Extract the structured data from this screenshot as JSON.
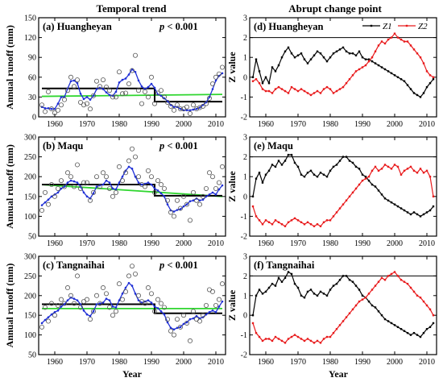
{
  "col_titles": {
    "left": "Temporal trend",
    "right": "Abrupt change point"
  },
  "labels": {
    "year": "Year",
    "annual_runoff": "Annual runoff (mm)",
    "z_value": "Z value",
    "pval_prefix": "p",
    "pval_suffix": "< 0.001"
  },
  "legend": {
    "z1": "Z1",
    "z2": "Z2"
  },
  "colors": {
    "z1": "#000000",
    "z2": "#e8191b",
    "moving": "#1f2fd6",
    "trend": "#2fd62f",
    "step": "#000000",
    "obs": "#555555"
  },
  "chart_data": [
    {
      "type": "scatter",
      "id": "trend_huangheyan",
      "panel": "(a) Huangheyan",
      "xlim": [
        1955,
        2013
      ],
      "ylim": [
        0,
        150
      ],
      "xticks": [
        1960,
        1970,
        1980,
        1990,
        2000,
        2010
      ],
      "yticks": [
        0,
        30,
        60,
        90,
        120,
        150
      ],
      "x": [
        1956,
        1957,
        1958,
        1959,
        1960,
        1961,
        1962,
        1963,
        1964,
        1965,
        1966,
        1967,
        1968,
        1969,
        1970,
        1971,
        1972,
        1973,
        1974,
        1975,
        1976,
        1977,
        1978,
        1979,
        1980,
        1981,
        1982,
        1983,
        1984,
        1985,
        1986,
        1987,
        1988,
        1989,
        1990,
        1991,
        1992,
        1993,
        1994,
        1995,
        1996,
        1997,
        1998,
        1999,
        2000,
        2001,
        2002,
        2003,
        2004,
        2005,
        2006,
        2007,
        2008,
        2009,
        2010,
        2011,
        2012
      ],
      "observed": [
        18,
        8,
        38,
        12,
        6,
        10,
        18,
        26,
        40,
        60,
        46,
        56,
        22,
        18,
        20,
        12,
        32,
        54,
        46,
        56,
        45,
        40,
        30,
        30,
        68,
        35,
        36,
        50,
        70,
        93,
        40,
        20,
        38,
        30,
        60,
        20,
        36,
        40,
        30,
        22,
        16,
        10,
        18,
        12,
        12,
        15,
        5,
        18,
        12,
        14,
        16,
        20,
        28,
        50,
        60,
        65,
        75
      ],
      "moving_avg": [
        15,
        13,
        13,
        12,
        12,
        20,
        30,
        30,
        43,
        54,
        55,
        51,
        35,
        27,
        30,
        26,
        32,
        42,
        44,
        42,
        37,
        33,
        32,
        38,
        52,
        56,
        58,
        64,
        72,
        68,
        55,
        46,
        42,
        45,
        50,
        44,
        34,
        32,
        28,
        24,
        18,
        15,
        15,
        12,
        10,
        10,
        10,
        11,
        12,
        14,
        18,
        22,
        30,
        42,
        55,
        62,
        66
      ],
      "step": [
        {
          "x0": 1956,
          "x1": 1991,
          "y": 43
        },
        {
          "x0": 1991,
          "x1": 2012,
          "y": 23
        }
      ],
      "trend": {
        "x0": 1956,
        "x1": 2012,
        "y0": 31,
        "y1": 34
      }
    },
    {
      "type": "scatter",
      "id": "trend_maqu",
      "panel": "(b) Maqu",
      "xlim": [
        1955,
        2013
      ],
      "ylim": [
        50,
        300
      ],
      "xticks": [
        1960,
        1970,
        1980,
        1990,
        2000,
        2010
      ],
      "yticks": [
        50,
        100,
        150,
        200,
        250,
        300
      ],
      "x": [
        1956,
        1957,
        1958,
        1959,
        1960,
        1961,
        1962,
        1963,
        1964,
        1965,
        1966,
        1967,
        1968,
        1969,
        1970,
        1971,
        1972,
        1973,
        1974,
        1975,
        1976,
        1977,
        1978,
        1979,
        1980,
        1981,
        1982,
        1983,
        1984,
        1985,
        1986,
        1987,
        1988,
        1989,
        1990,
        1991,
        1992,
        1993,
        1994,
        1995,
        1996,
        1997,
        1998,
        1999,
        2000,
        2001,
        2002,
        2003,
        2004,
        2005,
        2006,
        2007,
        2008,
        2009,
        2010,
        2011,
        2012
      ],
      "observed": [
        115,
        160,
        130,
        180,
        150,
        170,
        190,
        175,
        210,
        200,
        175,
        230,
        170,
        185,
        185,
        140,
        160,
        200,
        175,
        210,
        200,
        170,
        150,
        160,
        225,
        190,
        210,
        240,
        270,
        250,
        200,
        180,
        175,
        215,
        200,
        160,
        190,
        180,
        170,
        140,
        110,
        100,
        140,
        120,
        150,
        130,
        90,
        160,
        140,
        130,
        150,
        170,
        210,
        200,
        170,
        185,
        225
      ],
      "moving_avg": [
        128,
        135,
        142,
        150,
        155,
        160,
        170,
        175,
        185,
        190,
        188,
        185,
        175,
        160,
        150,
        145,
        158,
        175,
        178,
        180,
        190,
        185,
        170,
        168,
        185,
        200,
        215,
        225,
        220,
        200,
        185,
        180,
        182,
        185,
        180,
        170,
        165,
        158,
        150,
        130,
        115,
        112,
        116,
        118,
        125,
        130,
        138,
        140,
        145,
        140,
        142,
        150,
        155,
        160,
        155,
        168,
        178
      ],
      "step": [
        {
          "x0": 1956,
          "x1": 1991,
          "y": 180
        },
        {
          "x0": 1991,
          "x1": 2012,
          "y": 152
        }
      ],
      "trend": {
        "x0": 1956,
        "x1": 2012,
        "y0": 180,
        "y1": 150
      }
    },
    {
      "type": "scatter",
      "id": "trend_tangnaihai",
      "panel": "(c) Tangnaihai",
      "xlim": [
        1955,
        2013
      ],
      "ylim": [
        50,
        300
      ],
      "xticks": [
        1960,
        1970,
        1980,
        1990,
        2000,
        2010
      ],
      "yticks": [
        50,
        100,
        150,
        200,
        250,
        300
      ],
      "x": [
        1956,
        1957,
        1958,
        1959,
        1960,
        1961,
        1962,
        1963,
        1964,
        1965,
        1966,
        1967,
        1968,
        1969,
        1970,
        1971,
        1972,
        1973,
        1974,
        1975,
        1976,
        1977,
        1978,
        1979,
        1980,
        1981,
        1982,
        1983,
        1984,
        1985,
        1986,
        1987,
        1988,
        1989,
        1990,
        1991,
        1992,
        1993,
        1994,
        1995,
        1996,
        1997,
        1998,
        1999,
        2000,
        2001,
        2002,
        2003,
        2004,
        2005,
        2006,
        2007,
        2008,
        2009,
        2010,
        2011,
        2012
      ],
      "observed": [
        120,
        170,
        135,
        180,
        150,
        175,
        190,
        180,
        220,
        200,
        180,
        250,
        170,
        185,
        190,
        140,
        160,
        200,
        180,
        220,
        205,
        170,
        150,
        160,
        230,
        190,
        210,
        250,
        275,
        255,
        200,
        185,
        180,
        220,
        205,
        160,
        190,
        180,
        170,
        140,
        110,
        100,
        140,
        120,
        150,
        130,
        85,
        160,
        140,
        135,
        150,
        175,
        215,
        210,
        175,
        190,
        230
      ],
      "moving_avg": [
        130,
        138,
        145,
        152,
        158,
        162,
        172,
        178,
        188,
        195,
        192,
        188,
        178,
        162,
        152,
        148,
        160,
        178,
        180,
        182,
        192,
        188,
        172,
        170,
        188,
        205,
        220,
        232,
        225,
        205,
        188,
        182,
        185,
        188,
        182,
        172,
        168,
        160,
        152,
        132,
        118,
        114,
        118,
        120,
        128,
        132,
        140,
        142,
        148,
        142,
        145,
        152,
        158,
        162,
        158,
        172,
        185
      ],
      "step": [
        {
          "x0": 1956,
          "x1": 1991,
          "y": 178
        },
        {
          "x0": 1991,
          "x1": 2012,
          "y": 155
        }
      ],
      "trend": {
        "x0": 1956,
        "x1": 2012,
        "y0": 167,
        "y1": 167
      }
    },
    {
      "type": "line",
      "id": "z_huangheyan",
      "panel": "(d) Huangheyan",
      "xlim": [
        1955,
        2013
      ],
      "ylim": [
        -2,
        3
      ],
      "xticks": [
        1960,
        1970,
        1980,
        1990,
        2000,
        2010
      ],
      "yticks": [
        -2,
        -1,
        0,
        1,
        2,
        3
      ],
      "ref_lines": [
        -2,
        2
      ],
      "x": [
        1956,
        1957,
        1958,
        1959,
        1960,
        1961,
        1962,
        1963,
        1964,
        1965,
        1966,
        1967,
        1968,
        1969,
        1970,
        1971,
        1972,
        1973,
        1974,
        1975,
        1976,
        1977,
        1978,
        1979,
        1980,
        1981,
        1982,
        1983,
        1984,
        1985,
        1986,
        1987,
        1988,
        1989,
        1990,
        1991,
        1992,
        1993,
        1994,
        1995,
        1996,
        1997,
        1998,
        1999,
        2000,
        2001,
        2002,
        2003,
        2004,
        2005,
        2006,
        2007,
        2008,
        2009,
        2010,
        2011,
        2012
      ],
      "series": [
        {
          "name": "Z1",
          "values": [
            0,
            0.9,
            0.3,
            -0.3,
            0.0,
            -0.3,
            0.5,
            0.3,
            0.6,
            1.0,
            1.3,
            1.5,
            1.2,
            1.0,
            1.1,
            1.2,
            0.9,
            0.7,
            0.9,
            1.1,
            1.3,
            1.2,
            1.0,
            0.8,
            1.0,
            1.2,
            1.3,
            1.4,
            1.5,
            1.3,
            1.2,
            1.2,
            1.1,
            1.3,
            1.0,
            0.9,
            0.9,
            0.8,
            0.7,
            0.6,
            0.5,
            0.4,
            0.3,
            0.2,
            0.1,
            0.0,
            -0.1,
            -0.2,
            -0.4,
            -0.6,
            -0.8,
            -0.9,
            -1.0,
            -0.8,
            -0.5,
            -0.3,
            -0.1
          ]
        },
        {
          "name": "Z2",
          "values": [
            -0.2,
            -0.1,
            -0.3,
            -0.6,
            -0.7,
            -0.7,
            -0.8,
            -0.6,
            -0.5,
            -0.6,
            -0.7,
            -0.8,
            -0.5,
            -0.6,
            -0.7,
            -0.6,
            -0.7,
            -0.8,
            -0.9,
            -0.8,
            -0.7,
            -0.8,
            -0.6,
            -0.5,
            -0.6,
            -0.8,
            -0.7,
            -0.6,
            -0.5,
            -0.3,
            -0.1,
            0.1,
            0.3,
            0.4,
            0.5,
            0.6,
            0.8,
            1.0,
            1.3,
            1.6,
            1.8,
            1.7,
            1.9,
            2.0,
            2.2,
            2.0,
            1.9,
            1.8,
            1.8,
            1.6,
            1.4,
            1.2,
            1.0,
            0.7,
            0.3,
            0.1,
            0.0
          ]
        }
      ]
    },
    {
      "type": "line",
      "id": "z_maqu",
      "panel": "(e) Maqu",
      "xlim": [
        1955,
        2013
      ],
      "ylim": [
        -2,
        3
      ],
      "xticks": [
        1960,
        1970,
        1980,
        1990,
        2000,
        2010
      ],
      "yticks": [
        -2,
        -1,
        0,
        1,
        2,
        3
      ],
      "ref_lines": [
        -2,
        2
      ],
      "x": [
        1956,
        1957,
        1958,
        1959,
        1960,
        1961,
        1962,
        1963,
        1964,
        1965,
        1966,
        1967,
        1968,
        1969,
        1970,
        1971,
        1972,
        1973,
        1974,
        1975,
        1976,
        1977,
        1978,
        1979,
        1980,
        1981,
        1982,
        1983,
        1984,
        1985,
        1986,
        1987,
        1988,
        1989,
        1990,
        1991,
        1992,
        1993,
        1994,
        1995,
        1996,
        1997,
        1998,
        1999,
        2000,
        2001,
        2002,
        2003,
        2004,
        2005,
        2006,
        2007,
        2008,
        2009,
        2010,
        2011,
        2012
      ],
      "series": [
        {
          "name": "Z1",
          "values": [
            0,
            0.9,
            1.2,
            0.7,
            1.1,
            1.3,
            1.6,
            1.5,
            1.8,
            1.6,
            1.8,
            2.1,
            2.1,
            1.7,
            1.5,
            1.1,
            1.0,
            1.2,
            1.3,
            1.1,
            1.0,
            1.2,
            1.1,
            1.0,
            1.3,
            1.5,
            1.6,
            1.8,
            2.0,
            2.0,
            1.8,
            1.7,
            1.5,
            1.4,
            1.1,
            1.0,
            0.8,
            0.6,
            0.5,
            0.3,
            0.1,
            -0.1,
            -0.2,
            -0.3,
            -0.4,
            -0.5,
            -0.6,
            -0.7,
            -0.8,
            -0.9,
            -0.8,
            -0.9,
            -1.0,
            -0.9,
            -0.8,
            -0.7,
            -0.5
          ]
        },
        {
          "name": "Z2",
          "values": [
            -0.5,
            -1.0,
            -1.2,
            -1.4,
            -1.2,
            -1.3,
            -1.4,
            -1.2,
            -1.3,
            -1.4,
            -1.5,
            -1.3,
            -1.2,
            -1.1,
            -1.2,
            -1.3,
            -1.4,
            -1.3,
            -1.4,
            -1.5,
            -1.4,
            -1.5,
            -1.3,
            -1.2,
            -1.2,
            -1.0,
            -0.8,
            -0.6,
            -0.4,
            -0.2,
            0.0,
            0.2,
            0.4,
            0.6,
            0.8,
            0.9,
            1.0,
            1.3,
            1.5,
            1.3,
            1.4,
            1.6,
            1.5,
            1.4,
            1.6,
            1.5,
            1.1,
            1.3,
            1.4,
            1.5,
            1.3,
            1.2,
            1.4,
            1.2,
            1.3,
            1.0,
            0.0
          ]
        }
      ]
    },
    {
      "type": "line",
      "id": "z_tangnaihai",
      "panel": "(f) Tangnaihai",
      "xlim": [
        1955,
        2013
      ],
      "ylim": [
        -2,
        3
      ],
      "xticks": [
        1960,
        1970,
        1980,
        1990,
        2000,
        2010
      ],
      "yticks": [
        -2,
        -1,
        0,
        1,
        2,
        3
      ],
      "ref_lines": [
        -2,
        2
      ],
      "x": [
        1956,
        1957,
        1958,
        1959,
        1960,
        1961,
        1962,
        1963,
        1964,
        1965,
        1966,
        1967,
        1968,
        1969,
        1970,
        1971,
        1972,
        1973,
        1974,
        1975,
        1976,
        1977,
        1978,
        1979,
        1980,
        1981,
        1982,
        1983,
        1984,
        1985,
        1986,
        1987,
        1988,
        1989,
        1990,
        1991,
        1992,
        1993,
        1994,
        1995,
        1996,
        1997,
        1998,
        1999,
        2000,
        2001,
        2002,
        2003,
        2004,
        2005,
        2006,
        2007,
        2008,
        2009,
        2010,
        2011,
        2012
      ],
      "series": [
        {
          "name": "Z1",
          "values": [
            0,
            1.0,
            1.3,
            1.1,
            1.2,
            1.4,
            1.6,
            1.5,
            1.9,
            1.7,
            1.9,
            2.2,
            2.1,
            1.6,
            1.4,
            1.0,
            0.9,
            1.2,
            1.3,
            1.1,
            1.0,
            1.2,
            1.1,
            1.0,
            1.3,
            1.5,
            1.6,
            1.8,
            2.0,
            2.0,
            1.8,
            1.7,
            1.5,
            1.3,
            1.0,
            0.9,
            0.7,
            0.5,
            0.4,
            0.2,
            0.0,
            -0.2,
            -0.3,
            -0.4,
            -0.5,
            -0.6,
            -0.7,
            -0.8,
            -0.9,
            -1.0,
            -0.9,
            -1.0,
            -1.1,
            -0.9,
            -0.7,
            -0.6,
            -0.4
          ]
        },
        {
          "name": "Z2",
          "values": [
            -0.4,
            -0.9,
            -1.1,
            -1.3,
            -1.2,
            -1.2,
            -1.3,
            -1.1,
            -1.2,
            -1.3,
            -1.4,
            -1.2,
            -1.1,
            -1.0,
            -1.1,
            -1.2,
            -1.3,
            -1.2,
            -1.3,
            -1.4,
            -1.3,
            -1.4,
            -1.2,
            -1.1,
            -1.1,
            -0.9,
            -0.7,
            -0.5,
            -0.3,
            -0.1,
            0.1,
            0.3,
            0.5,
            0.7,
            0.8,
            0.9,
            1.1,
            1.3,
            1.5,
            1.7,
            1.9,
            1.8,
            2.0,
            2.1,
            2.2,
            2.0,
            1.8,
            1.7,
            1.6,
            1.4,
            1.2,
            1.0,
            0.9,
            0.7,
            0.5,
            0.3,
            0.0
          ]
        }
      ]
    }
  ]
}
